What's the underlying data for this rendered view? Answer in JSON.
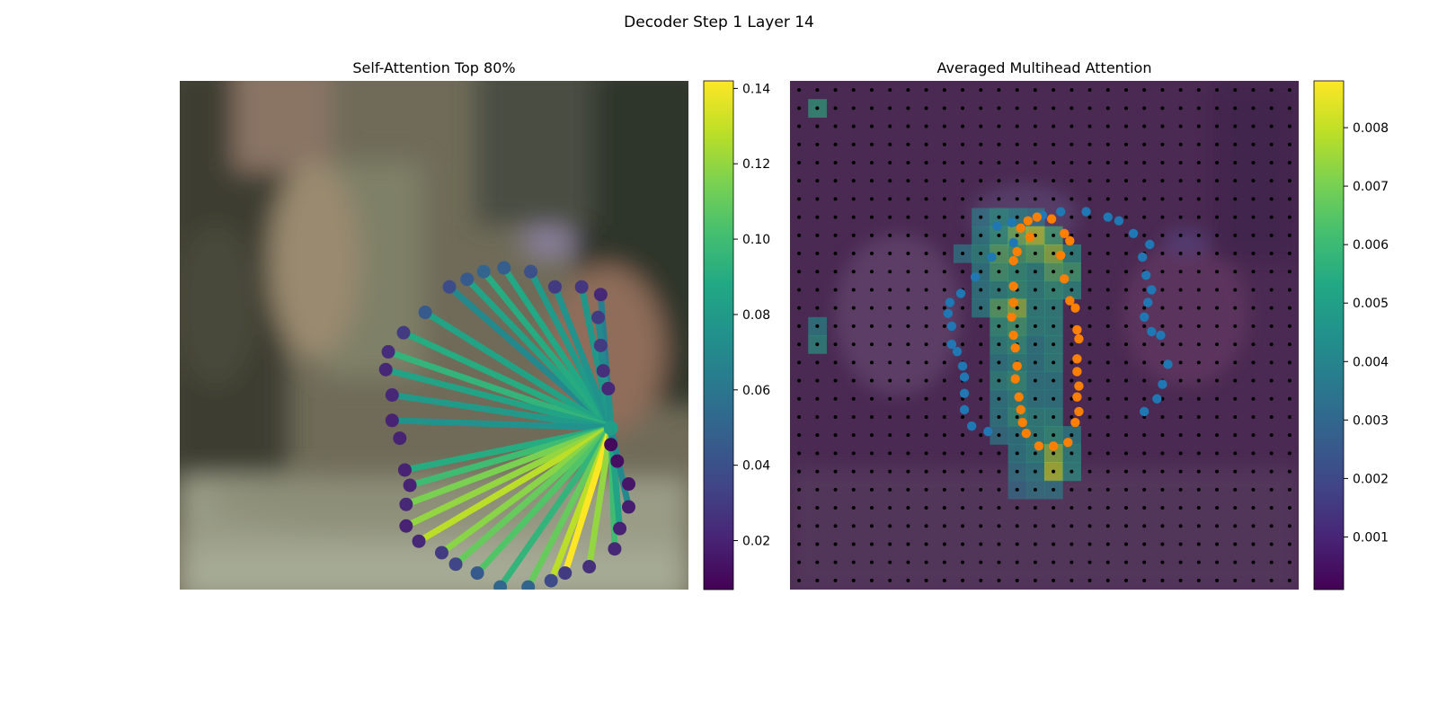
{
  "figure": {
    "suptitle": "Decoder Step 1 Layer 14"
  },
  "chart_data": [
    {
      "type": "scatter",
      "title": "Self-Attention Top 80%",
      "colormap": "viridis",
      "colorbar": {
        "range": [
          0.007,
          0.142
        ],
        "ticks": [
          "0.02",
          "0.04",
          "0.06",
          "0.08",
          "0.10",
          "0.12",
          "0.14"
        ],
        "tick_values": [
          0.02,
          0.04,
          0.06,
          0.08,
          0.1,
          0.12,
          0.14
        ]
      },
      "axes_visible": false,
      "query_point": {
        "x": 339,
        "y": 273,
        "weight": 0.082
      },
      "points": [
        {
          "x": 212,
          "y": 162,
          "weight": 0.038
        },
        {
          "x": 226,
          "y": 156,
          "weight": 0.045
        },
        {
          "x": 239,
          "y": 150,
          "weight": 0.05
        },
        {
          "x": 255,
          "y": 147,
          "weight": 0.047
        },
        {
          "x": 276,
          "y": 150,
          "weight": 0.04
        },
        {
          "x": 295,
          "y": 162,
          "weight": 0.03
        },
        {
          "x": 316,
          "y": 162,
          "weight": 0.028
        },
        {
          "x": 331,
          "y": 168,
          "weight": 0.022
        },
        {
          "x": 329,
          "y": 186,
          "weight": 0.03
        },
        {
          "x": 193,
          "y": 182,
          "weight": 0.045
        },
        {
          "x": 176,
          "y": 198,
          "weight": 0.03
        },
        {
          "x": 164,
          "y": 213,
          "weight": 0.024
        },
        {
          "x": 162,
          "y": 227,
          "weight": 0.022
        },
        {
          "x": 167,
          "y": 247,
          "weight": 0.022
        },
        {
          "x": 167,
          "y": 267,
          "weight": 0.02
        },
        {
          "x": 173,
          "y": 281,
          "weight": 0.02
        },
        {
          "x": 331,
          "y": 208,
          "weight": 0.03
        },
        {
          "x": 333,
          "y": 228,
          "weight": 0.025
        },
        {
          "x": 337,
          "y": 242,
          "weight": 0.022
        },
        {
          "x": 177,
          "y": 306,
          "weight": 0.02
        },
        {
          "x": 181,
          "y": 318,
          "weight": 0.02
        },
        {
          "x": 178,
          "y": 333,
          "weight": 0.022
        },
        {
          "x": 178,
          "y": 350,
          "weight": 0.02
        },
        {
          "x": 188,
          "y": 362,
          "weight": 0.022
        },
        {
          "x": 206,
          "y": 371,
          "weight": 0.03
        },
        {
          "x": 217,
          "y": 380,
          "weight": 0.035
        },
        {
          "x": 234,
          "y": 387,
          "weight": 0.045
        },
        {
          "x": 252,
          "y": 398,
          "weight": 0.052
        },
        {
          "x": 274,
          "y": 398,
          "weight": 0.05
        },
        {
          "x": 292,
          "y": 393,
          "weight": 0.038
        },
        {
          "x": 303,
          "y": 387,
          "weight": 0.03
        },
        {
          "x": 322,
          "y": 382,
          "weight": 0.025
        },
        {
          "x": 342,
          "y": 368,
          "weight": 0.022
        },
        {
          "x": 346,
          "y": 352,
          "weight": 0.02
        },
        {
          "x": 353,
          "y": 335,
          "weight": 0.018
        },
        {
          "x": 353,
          "y": 317,
          "weight": 0.015
        },
        {
          "x": 344,
          "y": 299,
          "weight": 0.012
        },
        {
          "x": 339,
          "y": 286,
          "weight": 0.01
        }
      ],
      "edges": [
        {
          "to": 0,
          "weight": 0.07
        },
        {
          "to": 1,
          "weight": 0.085
        },
        {
          "to": 2,
          "weight": 0.09
        },
        {
          "to": 3,
          "weight": 0.088
        },
        {
          "to": 4,
          "weight": 0.08
        },
        {
          "to": 5,
          "weight": 0.075
        },
        {
          "to": 6,
          "weight": 0.078
        },
        {
          "to": 7,
          "weight": 0.065
        },
        {
          "to": 8,
          "weight": 0.07
        },
        {
          "to": 9,
          "weight": 0.085
        },
        {
          "to": 10,
          "weight": 0.09
        },
        {
          "to": 11,
          "weight": 0.095
        },
        {
          "to": 12,
          "weight": 0.085
        },
        {
          "to": 13,
          "weight": 0.08
        },
        {
          "to": 14,
          "weight": 0.075
        },
        {
          "to": 16,
          "weight": 0.07
        },
        {
          "to": 17,
          "weight": 0.08
        },
        {
          "to": 18,
          "weight": 0.075
        },
        {
          "to": 19,
          "weight": 0.09
        },
        {
          "to": 20,
          "weight": 0.1
        },
        {
          "to": 21,
          "weight": 0.115
        },
        {
          "to": 22,
          "weight": 0.12
        },
        {
          "to": 23,
          "weight": 0.128
        },
        {
          "to": 24,
          "weight": 0.118
        },
        {
          "to": 25,
          "weight": 0.11
        },
        {
          "to": 26,
          "weight": 0.105
        },
        {
          "to": 27,
          "weight": 0.095
        },
        {
          "to": 28,
          "weight": 0.11
        },
        {
          "to": 29,
          "weight": 0.128
        },
        {
          "to": 30,
          "weight": 0.142
        },
        {
          "to": 31,
          "weight": 0.12
        },
        {
          "to": 32,
          "weight": 0.1
        },
        {
          "to": 33,
          "weight": 0.085
        },
        {
          "to": 34,
          "weight": 0.07
        }
      ]
    },
    {
      "type": "heatmap",
      "title": "Averaged Multihead Attention",
      "colormap": "viridis",
      "colorbar": {
        "range": [
          0.0001,
          0.0088
        ],
        "ticks": [
          "0.001",
          "0.002",
          "0.003",
          "0.004",
          "0.005",
          "0.006",
          "0.007",
          "0.008"
        ],
        "tick_values": [
          0.001,
          0.002,
          0.003,
          0.004,
          0.005,
          0.006,
          0.007,
          0.008
        ]
      },
      "grid": {
        "rows": 28,
        "cols": 28
      },
      "axes_visible": false,
      "hot_cells": [
        {
          "r": 1,
          "c": 1,
          "v": 0.0055
        },
        {
          "r": 7,
          "c": 10,
          "v": 0.004
        },
        {
          "r": 7,
          "c": 11,
          "v": 0.005
        },
        {
          "r": 7,
          "c": 12,
          "v": 0.0045
        },
        {
          "r": 7,
          "c": 13,
          "v": 0.004
        },
        {
          "r": 8,
          "c": 10,
          "v": 0.0045
        },
        {
          "r": 8,
          "c": 11,
          "v": 0.0055
        },
        {
          "r": 8,
          "c": 12,
          "v": 0.007
        },
        {
          "r": 8,
          "c": 13,
          "v": 0.008
        },
        {
          "r": 8,
          "c": 14,
          "v": 0.006
        },
        {
          "r": 9,
          "c": 9,
          "v": 0.004
        },
        {
          "r": 9,
          "c": 10,
          "v": 0.005
        },
        {
          "r": 9,
          "c": 11,
          "v": 0.0065
        },
        {
          "r": 9,
          "c": 12,
          "v": 0.006
        },
        {
          "r": 9,
          "c": 13,
          "v": 0.0065
        },
        {
          "r": 9,
          "c": 14,
          "v": 0.0075
        },
        {
          "r": 9,
          "c": 15,
          "v": 0.005
        },
        {
          "r": 10,
          "c": 10,
          "v": 0.0045
        },
        {
          "r": 10,
          "c": 11,
          "v": 0.006
        },
        {
          "r": 10,
          "c": 12,
          "v": 0.0055
        },
        {
          "r": 10,
          "c": 13,
          "v": 0.005
        },
        {
          "r": 10,
          "c": 14,
          "v": 0.0065
        },
        {
          "r": 10,
          "c": 15,
          "v": 0.006
        },
        {
          "r": 11,
          "c": 10,
          "v": 0.0045
        },
        {
          "r": 11,
          "c": 11,
          "v": 0.005
        },
        {
          "r": 11,
          "c": 12,
          "v": 0.0055
        },
        {
          "r": 11,
          "c": 13,
          "v": 0.005
        },
        {
          "r": 11,
          "c": 14,
          "v": 0.0055
        },
        {
          "r": 11,
          "c": 15,
          "v": 0.005
        },
        {
          "r": 12,
          "c": 10,
          "v": 0.0045
        },
        {
          "r": 12,
          "c": 11,
          "v": 0.0065
        },
        {
          "r": 12,
          "c": 12,
          "v": 0.0075
        },
        {
          "r": 12,
          "c": 13,
          "v": 0.005
        },
        {
          "r": 12,
          "c": 14,
          "v": 0.005
        },
        {
          "r": 13,
          "c": 1,
          "v": 0.0045
        },
        {
          "r": 13,
          "c": 11,
          "v": 0.0055
        },
        {
          "r": 13,
          "c": 12,
          "v": 0.006
        },
        {
          "r": 13,
          "c": 13,
          "v": 0.005
        },
        {
          "r": 13,
          "c": 14,
          "v": 0.005
        },
        {
          "r": 14,
          "c": 1,
          "v": 0.005
        },
        {
          "r": 14,
          "c": 11,
          "v": 0.005
        },
        {
          "r": 14,
          "c": 12,
          "v": 0.0055
        },
        {
          "r": 14,
          "c": 13,
          "v": 0.0045
        },
        {
          "r": 14,
          "c": 14,
          "v": 0.005
        },
        {
          "r": 15,
          "c": 11,
          "v": 0.0045
        },
        {
          "r": 15,
          "c": 12,
          "v": 0.005
        },
        {
          "r": 15,
          "c": 13,
          "v": 0.0045
        },
        {
          "r": 15,
          "c": 14,
          "v": 0.005
        },
        {
          "r": 16,
          "c": 11,
          "v": 0.005
        },
        {
          "r": 16,
          "c": 12,
          "v": 0.0055
        },
        {
          "r": 16,
          "c": 13,
          "v": 0.0045
        },
        {
          "r": 16,
          "c": 14,
          "v": 0.0045
        },
        {
          "r": 17,
          "c": 11,
          "v": 0.0045
        },
        {
          "r": 17,
          "c": 12,
          "v": 0.005
        },
        {
          "r": 17,
          "c": 13,
          "v": 0.0045
        },
        {
          "r": 17,
          "c": 14,
          "v": 0.0045
        },
        {
          "r": 18,
          "c": 11,
          "v": 0.0045
        },
        {
          "r": 18,
          "c": 12,
          "v": 0.0055
        },
        {
          "r": 18,
          "c": 13,
          "v": 0.005
        },
        {
          "r": 18,
          "c": 14,
          "v": 0.005
        },
        {
          "r": 19,
          "c": 11,
          "v": 0.004
        },
        {
          "r": 19,
          "c": 12,
          "v": 0.0045
        },
        {
          "r": 19,
          "c": 13,
          "v": 0.005
        },
        {
          "r": 19,
          "c": 14,
          "v": 0.0055
        },
        {
          "r": 19,
          "c": 15,
          "v": 0.0045
        },
        {
          "r": 20,
          "c": 12,
          "v": 0.0045
        },
        {
          "r": 20,
          "c": 13,
          "v": 0.005
        },
        {
          "r": 20,
          "c": 14,
          "v": 0.0075
        },
        {
          "r": 20,
          "c": 15,
          "v": 0.005
        },
        {
          "r": 21,
          "c": 12,
          "v": 0.004
        },
        {
          "r": 21,
          "c": 13,
          "v": 0.0045
        },
        {
          "r": 21,
          "c": 14,
          "v": 0.008
        },
        {
          "r": 21,
          "c": 15,
          "v": 0.005
        },
        {
          "r": 22,
          "c": 12,
          "v": 0.0035
        },
        {
          "r": 22,
          "c": 13,
          "v": 0.004
        },
        {
          "r": 22,
          "c": 14,
          "v": 0.004
        }
      ],
      "overlay_series": [
        {
          "color": "#1f77b4",
          "x": [
            13.4,
            14.4,
            15.8,
            17.0,
            17.6,
            18.4,
            19.3,
            18.9,
            19.1,
            19.4,
            19.2,
            19.0,
            19.4,
            19.9,
            20.3,
            20.0,
            19.7,
            19.0,
            11.8,
            10.6,
            9.7,
            8.9,
            8.3,
            8.2,
            8.4,
            8.4,
            8.7,
            9.0,
            9.1,
            9.1,
            9.1,
            9.5,
            10.4,
            10.9,
            11.7
          ],
          "y": [
            6.9,
            6.7,
            6.7,
            7.0,
            7.2,
            7.9,
            8.5,
            9.2,
            10.2,
            11.0,
            11.7,
            12.5,
            13.3,
            13.5,
            15.1,
            16.2,
            17.0,
            17.7,
            8.4,
            9.2,
            10.3,
            11.2,
            11.7,
            12.3,
            13.0,
            14.0,
            14.4,
            15.2,
            15.8,
            16.7,
            17.6,
            18.5,
            18.8,
            7.5,
            7.3
          ]
        },
        {
          "color": "#ff7f00",
          "x": [
            12.2,
            12.6,
            13.1,
            13.9,
            14.6,
            14.9,
            14.4,
            14.6,
            14.9,
            15.2,
            15.3,
            15.4,
            15.3,
            15.3,
            15.4,
            15.3,
            15.4,
            15.2,
            14.8,
            14.0,
            13.2,
            12.5,
            12.3,
            12.2,
            12.1,
            11.9,
            12.0,
            11.9,
            11.8,
            11.7,
            11.8,
            11.8,
            11.8,
            12.0,
            12.7
          ],
          "y": [
            7.6,
            7.2,
            7.0,
            7.1,
            7.9,
            8.3,
            9.1,
            10.4,
            11.6,
            12.0,
            13.2,
            13.7,
            14.8,
            15.5,
            16.3,
            16.9,
            17.7,
            18.3,
            19.4,
            19.6,
            19.6,
            18.9,
            18.3,
            17.6,
            16.9,
            15.9,
            15.2,
            14.2,
            13.5,
            12.5,
            11.7,
            10.8,
            9.4,
            8.9,
            8.1
          ]
        }
      ]
    }
  ]
}
